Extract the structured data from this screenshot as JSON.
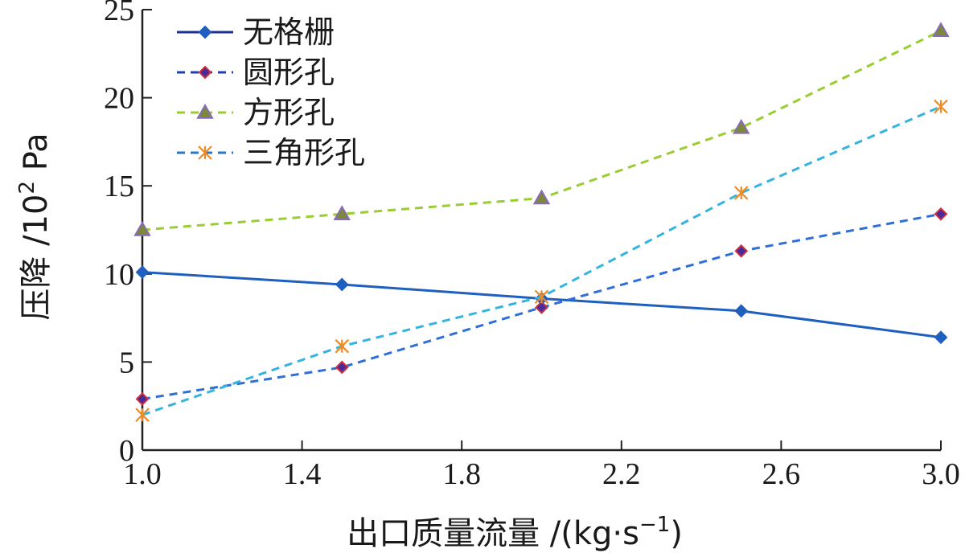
{
  "chart_data": {
    "type": "line",
    "title": "",
    "xlabel": "出口质量流量 /(kg·s",
    "xlabel_sup": "−1",
    "xlabel_tail": ")",
    "ylabel": "压降 /10",
    "ylabel_sup": "2",
    "ylabel_tail": " Pa",
    "x": [
      1.0,
      1.5,
      2.0,
      2.5,
      3.0
    ],
    "xlim": [
      1.0,
      3.0
    ],
    "ylim": [
      0,
      25
    ],
    "xticks": [
      1.0,
      1.4,
      1.8,
      2.2,
      2.6,
      3.0
    ],
    "xtick_labels": [
      "1.0",
      "1.4",
      "1.8",
      "2.2",
      "2.6",
      "3.0"
    ],
    "yticks": [
      0,
      5,
      10,
      15,
      20,
      25
    ],
    "ytick_labels": [
      "0",
      "5",
      "10",
      "15",
      "20",
      "25"
    ],
    "grid": false,
    "legend_position": "top-left",
    "series": [
      {
        "name": "无格栅",
        "values": [
          10.1,
          9.4,
          8.6,
          7.9,
          6.4
        ],
        "color": "#1f5fbf",
        "marker_edge": "#1f5fbf",
        "marker_fill": "#1f5fbf",
        "marker": "diamond",
        "dashed": false,
        "legend_color": "#1a2f8f"
      },
      {
        "name": "圆形孔",
        "values": [
          2.9,
          4.7,
          8.1,
          11.3,
          13.4
        ],
        "color": "#2f6fd6",
        "marker_edge": "#d0303a",
        "marker_fill": "#4a2a9a",
        "marker": "diamond",
        "dashed": true,
        "legend_color": "#2040b0"
      },
      {
        "name": "方形孔",
        "values": [
          12.5,
          13.4,
          14.3,
          18.3,
          23.8
        ],
        "color": "#9acd32",
        "marker_edge": "#8a6ab8",
        "marker_fill": "#7a8a3a",
        "marker": "triangle",
        "dashed": true,
        "legend_color": "#9acd32"
      },
      {
        "name": "三角形孔",
        "values": [
          2.0,
          5.9,
          8.7,
          14.6,
          19.5
        ],
        "color": "#35b4e0",
        "marker_edge": "#f08a24",
        "marker_fill": "#f08a24",
        "marker": "asterisk",
        "dashed": true,
        "legend_color": "#2a78c8"
      }
    ]
  }
}
